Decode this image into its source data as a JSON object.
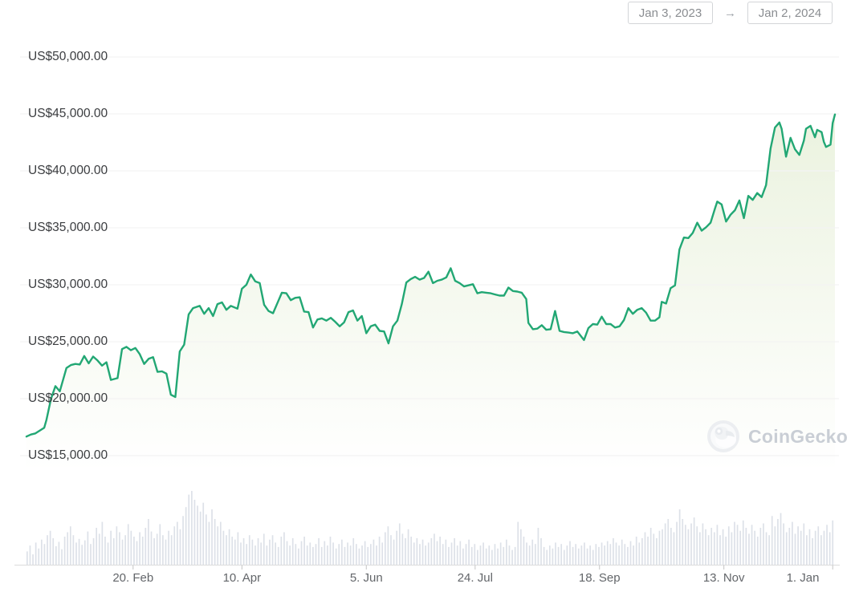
{
  "date_range": {
    "start": "Jan 3, 2023",
    "end": "Jan 2, 2024",
    "arrow_glyph": "→"
  },
  "watermark": {
    "label": "CoinGecko"
  },
  "colors": {
    "line": "#22a774",
    "fill_tint": "120,170,40",
    "grid": "#f3f3f3",
    "volume_bar": "#dde1e8",
    "axis_line": "#dcdcdc",
    "tick_mark": "#c4c4c4"
  },
  "chart_data": {
    "type": "line",
    "title": "",
    "currency_prefix": "US$",
    "legend": [],
    "grid": "horizontal-faint",
    "y_axis": {
      "labels": [
        "US$50,000.00",
        "US$45,000.00",
        "US$40,000.00",
        "US$35,000.00",
        "US$30,000.00",
        "US$25,000.00",
        "US$20,000.00",
        "US$15,000.00"
      ],
      "values": [
        50000,
        45000,
        40000,
        35000,
        30000,
        25000,
        20000,
        15000
      ],
      "range": [
        15000,
        50000
      ]
    },
    "x_axis": {
      "start_date": "2023-01-03",
      "end_date": "2024-01-02",
      "total_days": 364,
      "ticks": [
        {
          "label": "20. Feb",
          "date": "2023-02-20"
        },
        {
          "label": "10. Apr",
          "date": "2023-04-10"
        },
        {
          "label": "5. Jun",
          "date": "2023-06-05"
        },
        {
          "label": "24. Jul",
          "date": "2023-07-24"
        },
        {
          "label": "18. Sep",
          "date": "2023-09-18"
        },
        {
          "label": "13. Nov",
          "date": "2023-11-13"
        },
        {
          "label": "1. Jan",
          "date": "2024-01-01"
        }
      ]
    },
    "series": [
      {
        "name": "price-usd",
        "points": [
          [
            "2023-01-03",
            16675
          ],
          [
            "2023-01-05",
            16850
          ],
          [
            "2023-01-07",
            16950
          ],
          [
            "2023-01-09",
            17200
          ],
          [
            "2023-01-11",
            17450
          ],
          [
            "2023-01-12",
            18150
          ],
          [
            "2023-01-14",
            19950
          ],
          [
            "2023-01-16",
            21100
          ],
          [
            "2023-01-18",
            20650
          ],
          [
            "2023-01-21",
            22700
          ],
          [
            "2023-01-23",
            22950
          ],
          [
            "2023-01-25",
            23050
          ],
          [
            "2023-01-27",
            23000
          ],
          [
            "2023-01-29",
            23750
          ],
          [
            "2023-01-31",
            23100
          ],
          [
            "2023-02-02",
            23700
          ],
          [
            "2023-02-04",
            23350
          ],
          [
            "2023-02-06",
            22900
          ],
          [
            "2023-02-08",
            23200
          ],
          [
            "2023-02-10",
            21650
          ],
          [
            "2023-02-13",
            21800
          ],
          [
            "2023-02-15",
            24350
          ],
          [
            "2023-02-17",
            24550
          ],
          [
            "2023-02-19",
            24250
          ],
          [
            "2023-02-21",
            24450
          ],
          [
            "2023-02-23",
            23900
          ],
          [
            "2023-02-25",
            23050
          ],
          [
            "2023-02-27",
            23500
          ],
          [
            "2023-03-01",
            23650
          ],
          [
            "2023-03-03",
            22350
          ],
          [
            "2023-03-05",
            22400
          ],
          [
            "2023-03-07",
            22200
          ],
          [
            "2023-03-09",
            20350
          ],
          [
            "2023-03-11",
            20150
          ],
          [
            "2023-03-13",
            24150
          ],
          [
            "2023-03-15",
            24750
          ],
          [
            "2023-03-17",
            27400
          ],
          [
            "2023-03-19",
            27950
          ],
          [
            "2023-03-22",
            28150
          ],
          [
            "2023-03-24",
            27450
          ],
          [
            "2023-03-26",
            27950
          ],
          [
            "2023-03-28",
            27250
          ],
          [
            "2023-03-30",
            28300
          ],
          [
            "2023-04-01",
            28450
          ],
          [
            "2023-04-03",
            27800
          ],
          [
            "2023-04-05",
            28150
          ],
          [
            "2023-04-08",
            27900
          ],
          [
            "2023-04-10",
            29650
          ],
          [
            "2023-04-12",
            30000
          ],
          [
            "2023-04-14",
            30900
          ],
          [
            "2023-04-16",
            30300
          ],
          [
            "2023-04-18",
            30150
          ],
          [
            "2023-04-20",
            28250
          ],
          [
            "2023-04-22",
            27700
          ],
          [
            "2023-04-24",
            27500
          ],
          [
            "2023-04-26",
            28400
          ],
          [
            "2023-04-28",
            29300
          ],
          [
            "2023-04-30",
            29250
          ],
          [
            "2023-05-02",
            28650
          ],
          [
            "2023-05-04",
            28850
          ],
          [
            "2023-05-06",
            28900
          ],
          [
            "2023-05-08",
            27650
          ],
          [
            "2023-05-10",
            27600
          ],
          [
            "2023-05-12",
            26250
          ],
          [
            "2023-05-14",
            26950
          ],
          [
            "2023-05-16",
            27050
          ],
          [
            "2023-05-18",
            26850
          ],
          [
            "2023-05-20",
            27100
          ],
          [
            "2023-05-22",
            26750
          ],
          [
            "2023-05-24",
            26350
          ],
          [
            "2023-05-26",
            26700
          ],
          [
            "2023-05-28",
            27600
          ],
          [
            "2023-05-30",
            27750
          ],
          [
            "2023-06-01",
            26850
          ],
          [
            "2023-06-03",
            27250
          ],
          [
            "2023-06-05",
            25750
          ],
          [
            "2023-06-07",
            26350
          ],
          [
            "2023-06-09",
            26500
          ],
          [
            "2023-06-11",
            25950
          ],
          [
            "2023-06-13",
            25900
          ],
          [
            "2023-06-15",
            24850
          ],
          [
            "2023-06-17",
            26350
          ],
          [
            "2023-06-19",
            26850
          ],
          [
            "2023-06-21",
            28300
          ],
          [
            "2023-06-23",
            30200
          ],
          [
            "2023-06-25",
            30500
          ],
          [
            "2023-06-27",
            30700
          ],
          [
            "2023-06-29",
            30450
          ],
          [
            "2023-07-01",
            30600
          ],
          [
            "2023-07-03",
            31150
          ],
          [
            "2023-07-05",
            30150
          ],
          [
            "2023-07-07",
            30350
          ],
          [
            "2023-07-09",
            30450
          ],
          [
            "2023-07-11",
            30650
          ],
          [
            "2023-07-13",
            31450
          ],
          [
            "2023-07-15",
            30350
          ],
          [
            "2023-07-17",
            30150
          ],
          [
            "2023-07-19",
            29850
          ],
          [
            "2023-07-21",
            29950
          ],
          [
            "2023-07-23",
            30050
          ],
          [
            "2023-07-25",
            29250
          ],
          [
            "2023-07-27",
            29350
          ],
          [
            "2023-07-29",
            29300
          ],
          [
            "2023-07-31",
            29250
          ],
          [
            "2023-08-02",
            29150
          ],
          [
            "2023-08-04",
            29050
          ],
          [
            "2023-08-06",
            29050
          ],
          [
            "2023-08-08",
            29750
          ],
          [
            "2023-08-10",
            29450
          ],
          [
            "2023-08-12",
            29400
          ],
          [
            "2023-08-14",
            29300
          ],
          [
            "2023-08-16",
            28750
          ],
          [
            "2023-08-17",
            26650
          ],
          [
            "2023-08-19",
            26100
          ],
          [
            "2023-08-21",
            26150
          ],
          [
            "2023-08-23",
            26450
          ],
          [
            "2023-08-25",
            26050
          ],
          [
            "2023-08-27",
            26100
          ],
          [
            "2023-08-29",
            27700
          ],
          [
            "2023-08-31",
            25950
          ],
          [
            "2023-09-02",
            25850
          ],
          [
            "2023-09-04",
            25800
          ],
          [
            "2023-09-06",
            25750
          ],
          [
            "2023-09-08",
            25900
          ],
          [
            "2023-09-11",
            25150
          ],
          [
            "2023-09-13",
            26200
          ],
          [
            "2023-09-15",
            26550
          ],
          [
            "2023-09-17",
            26500
          ],
          [
            "2023-09-19",
            27200
          ],
          [
            "2023-09-21",
            26550
          ],
          [
            "2023-09-23",
            26550
          ],
          [
            "2023-09-25",
            26250
          ],
          [
            "2023-09-27",
            26350
          ],
          [
            "2023-09-29",
            26900
          ],
          [
            "2023-10-01",
            27950
          ],
          [
            "2023-10-03",
            27450
          ],
          [
            "2023-10-05",
            27800
          ],
          [
            "2023-10-07",
            27950
          ],
          [
            "2023-10-09",
            27550
          ],
          [
            "2023-10-11",
            26850
          ],
          [
            "2023-10-13",
            26850
          ],
          [
            "2023-10-15",
            27150
          ],
          [
            "2023-10-16",
            28500
          ],
          [
            "2023-10-18",
            28350
          ],
          [
            "2023-10-20",
            29700
          ],
          [
            "2023-10-22",
            29950
          ],
          [
            "2023-10-24",
            33100
          ],
          [
            "2023-10-26",
            34150
          ],
          [
            "2023-10-28",
            34100
          ],
          [
            "2023-10-30",
            34550
          ],
          [
            "2023-11-01",
            35450
          ],
          [
            "2023-11-03",
            34750
          ],
          [
            "2023-11-05",
            35050
          ],
          [
            "2023-11-07",
            35450
          ],
          [
            "2023-11-09",
            36700
          ],
          [
            "2023-11-10",
            37300
          ],
          [
            "2023-11-12",
            37050
          ],
          [
            "2023-11-14",
            35550
          ],
          [
            "2023-11-16",
            36150
          ],
          [
            "2023-11-18",
            36550
          ],
          [
            "2023-11-20",
            37400
          ],
          [
            "2023-11-22",
            35850
          ],
          [
            "2023-11-24",
            37800
          ],
          [
            "2023-11-26",
            37450
          ],
          [
            "2023-11-28",
            38050
          ],
          [
            "2023-11-30",
            37700
          ],
          [
            "2023-12-02",
            38750
          ],
          [
            "2023-12-04",
            41950
          ],
          [
            "2023-12-06",
            43800
          ],
          [
            "2023-12-08",
            44250
          ],
          [
            "2023-12-09",
            43700
          ],
          [
            "2023-12-11",
            41250
          ],
          [
            "2023-12-13",
            42900
          ],
          [
            "2023-12-15",
            41900
          ],
          [
            "2023-12-17",
            41400
          ],
          [
            "2023-12-19",
            42650
          ],
          [
            "2023-12-20",
            43700
          ],
          [
            "2023-12-22",
            43950
          ],
          [
            "2023-12-24",
            42950
          ],
          [
            "2023-12-25",
            43600
          ],
          [
            "2023-12-27",
            43400
          ],
          [
            "2023-12-28",
            42550
          ],
          [
            "2023-12-29",
            42100
          ],
          [
            "2023-12-31",
            42300
          ],
          [
            "2024-01-01",
            44200
          ],
          [
            "2024-01-02",
            44950
          ]
        ]
      }
    ],
    "volume": {
      "name": "volume",
      "heights_pct": [
        18,
        26,
        14,
        30,
        22,
        34,
        28,
        40,
        46,
        36,
        25,
        31,
        21,
        38,
        44,
        52,
        40,
        30,
        35,
        27,
        33,
        45,
        28,
        36,
        50,
        42,
        58,
        38,
        30,
        46,
        36,
        52,
        44,
        34,
        40,
        55,
        46,
        38,
        32,
        44,
        38,
        50,
        62,
        45,
        36,
        42,
        55,
        40,
        34,
        46,
        40,
        52,
        58,
        48,
        66,
        78,
        95,
        100,
        88,
        80,
        72,
        84,
        68,
        58,
        75,
        62,
        52,
        58,
        46,
        40,
        48,
        38,
        34,
        44,
        30,
        36,
        28,
        40,
        34,
        26,
        36,
        30,
        42,
        26,
        34,
        40,
        30,
        24,
        38,
        44,
        32,
        26,
        36,
        28,
        22,
        32,
        38,
        26,
        30,
        24,
        28,
        36,
        24,
        32,
        26,
        38,
        30,
        22,
        28,
        34,
        24,
        30,
        26,
        36,
        28,
        22,
        26,
        32,
        24,
        28,
        34,
        26,
        38,
        30,
        44,
        52,
        40,
        34,
        46,
        56,
        42,
        36,
        48,
        38,
        30,
        36,
        28,
        34,
        26,
        30,
        36,
        42,
        32,
        38,
        28,
        34,
        24,
        30,
        36,
        26,
        32,
        22,
        28,
        34,
        24,
        28,
        20,
        26,
        30,
        22,
        26,
        20,
        28,
        22,
        30,
        24,
        34,
        26,
        20,
        24,
        58,
        48,
        38,
        30,
        26,
        34,
        28,
        50,
        36,
        24,
        20,
        26,
        22,
        30,
        24,
        28,
        20,
        26,
        32,
        24,
        28,
        22,
        26,
        30,
        22,
        26,
        20,
        28,
        24,
        30,
        26,
        32,
        28,
        36,
        30,
        26,
        34,
        28,
        24,
        32,
        26,
        38,
        30,
        36,
        44,
        38,
        50,
        42,
        36,
        46,
        48,
        56,
        62,
        50,
        44,
        58,
        75,
        62,
        54,
        48,
        56,
        64,
        52,
        44,
        56,
        48,
        40,
        50,
        44,
        54,
        40,
        48,
        38,
        52,
        44,
        58,
        54,
        46,
        60,
        50,
        42,
        54,
        46,
        38,
        50,
        56,
        44,
        40,
        66,
        52,
        62,
        70,
        56,
        44,
        50,
        58,
        42,
        52,
        46,
        56,
        40,
        48,
        36,
        46,
        52,
        40,
        46,
        54,
        44,
        60
      ]
    }
  }
}
